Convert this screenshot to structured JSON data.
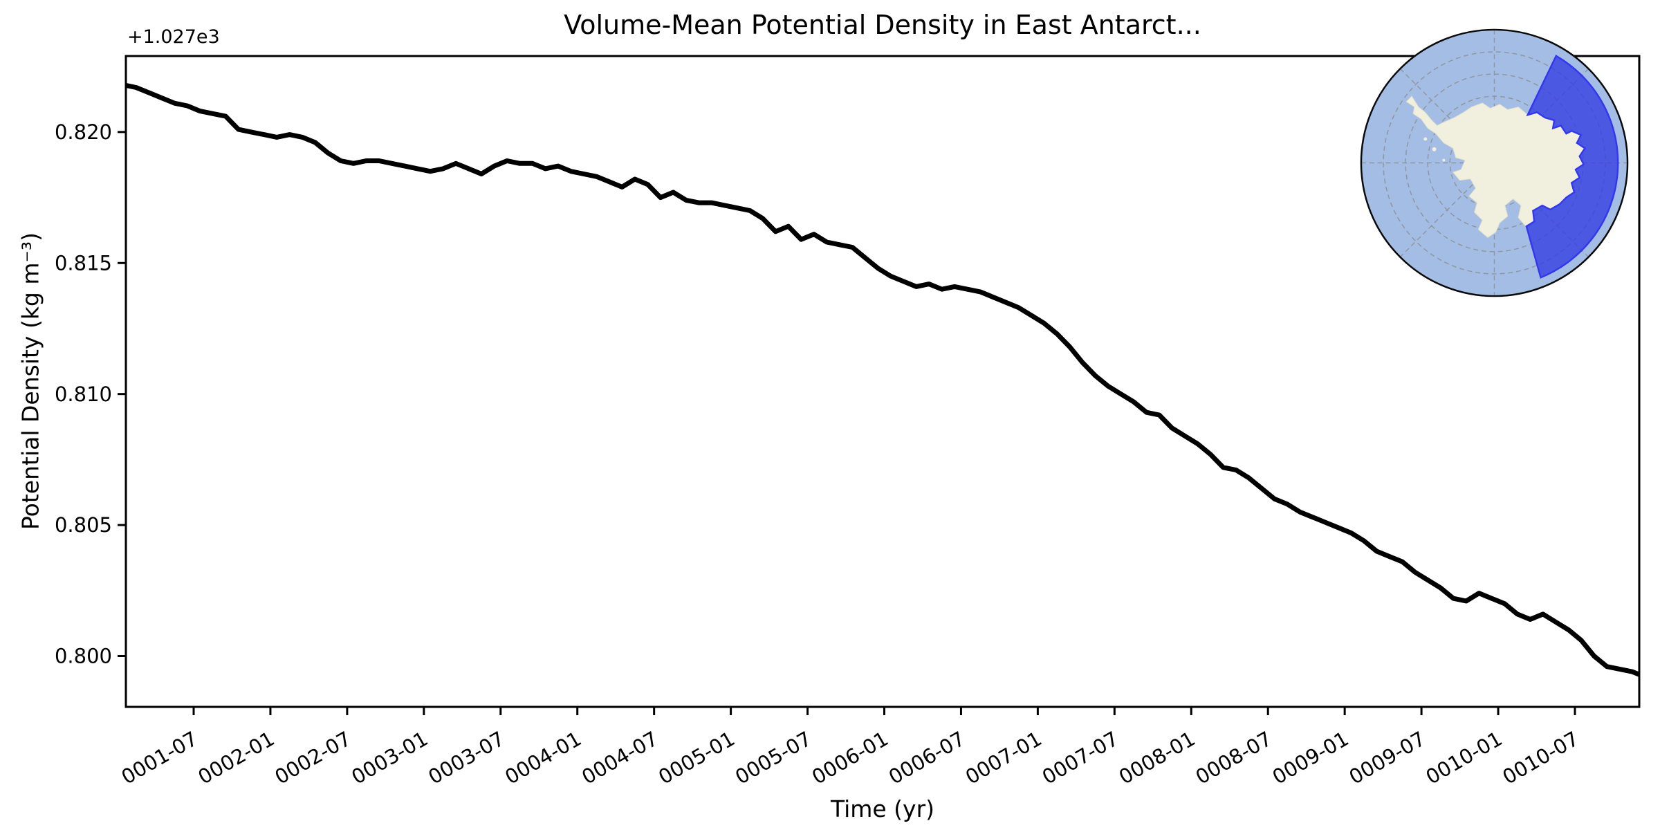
{
  "figure": {
    "title": "Volume-Mean Potential Density in East Antarct...",
    "offset_text": "+1.027e3",
    "xlabel": "Time (yr)",
    "ylabel": "Potential Density (kg m⁻³)"
  },
  "chart_data": {
    "type": "line",
    "title": "Volume-Mean Potential Density in East Antarct...",
    "xlabel": "Time (yr)",
    "ylabel": "Potential Density (kg m⁻³)",
    "y_offset_label": "+1.027e3",
    "y_offset": 1027,
    "grid": false,
    "legend": "none",
    "ylim": [
      1027.79806,
      1027.8229
    ],
    "xlim_months": [
      0.7,
      119.03
    ],
    "y_ticks": [
      {
        "value": 1027.82,
        "label": "0.820"
      },
      {
        "value": 1027.815,
        "label": "0.815"
      },
      {
        "value": 1027.81,
        "label": "0.810"
      },
      {
        "value": 1027.805,
        "label": "0.805"
      },
      {
        "value": 1027.8,
        "label": "0.800"
      }
    ],
    "x_tick_months": [
      6,
      12,
      18,
      24,
      30,
      36,
      42,
      48,
      54,
      60,
      66,
      72,
      78,
      84,
      90,
      96,
      102,
      108,
      114
    ],
    "x_tick_labels": [
      "0001-07",
      "0002-01",
      "0002-07",
      "0003-01",
      "0003-07",
      "0004-01",
      "0004-07",
      "0005-01",
      "0005-07",
      "0006-01",
      "0006-07",
      "0007-01",
      "0007-07",
      "0008-01",
      "0008-07",
      "0009-01",
      "0009-07",
      "0010-01",
      "0010-07"
    ],
    "x_start_month": "0001-01",
    "x_sampling": "monthly, point i at month i+0.5",
    "series": [
      {
        "name": "volume-mean potential density",
        "color": "#000000",
        "values": [
          1027.8218,
          1027.8217,
          1027.8215,
          1027.8213,
          1027.8211,
          1027.821,
          1027.8208,
          1027.8207,
          1027.8206,
          1027.8201,
          1027.82,
          1027.8199,
          1027.8198,
          1027.8199,
          1027.8198,
          1027.8196,
          1027.8192,
          1027.8189,
          1027.8188,
          1027.8189,
          1027.8189,
          1027.8188,
          1027.8187,
          1027.8186,
          1027.8185,
          1027.8186,
          1027.8188,
          1027.8186,
          1027.8184,
          1027.8187,
          1027.8189,
          1027.8188,
          1027.8188,
          1027.8186,
          1027.8187,
          1027.8185,
          1027.8184,
          1027.8183,
          1027.8181,
          1027.8179,
          1027.8182,
          1027.818,
          1027.8175,
          1027.8177,
          1027.8174,
          1027.8173,
          1027.8173,
          1027.8172,
          1027.8171,
          1027.817,
          1027.8167,
          1027.8162,
          1027.8164,
          1027.8159,
          1027.8161,
          1027.8158,
          1027.8157,
          1027.8156,
          1027.8152,
          1027.8148,
          1027.8145,
          1027.8143,
          1027.8141,
          1027.8142,
          1027.814,
          1027.8141,
          1027.814,
          1027.8139,
          1027.8137,
          1027.8135,
          1027.8133,
          1027.813,
          1027.8127,
          1027.8123,
          1027.8118,
          1027.8112,
          1027.8107,
          1027.8103,
          1027.81,
          1027.8097,
          1027.8093,
          1027.8092,
          1027.8087,
          1027.8084,
          1027.8081,
          1027.8077,
          1027.8072,
          1027.8071,
          1027.8068,
          1027.8064,
          1027.806,
          1027.8058,
          1027.8055,
          1027.8053,
          1027.8051,
          1027.8049,
          1027.8047,
          1027.8044,
          1027.804,
          1027.8038,
          1027.8036,
          1027.8032,
          1027.8029,
          1027.8026,
          1027.8022,
          1027.8021,
          1027.8024,
          1027.8022,
          1027.802,
          1027.8016,
          1027.8014,
          1027.8016,
          1027.8013,
          1027.801,
          1027.8006,
          1027.8,
          1027.7996,
          1027.7995,
          1027.7994,
          1027.7992
        ]
      }
    ]
  },
  "inset_map": {
    "projection": "south-polar-stereographic",
    "colors": {
      "ocean": "#a3bde4",
      "land": "#f1efdd",
      "region_fill": "#343fe0",
      "region_edge": "#3338f0",
      "graticule": "#909090",
      "outline": "#0a0a0a"
    }
  },
  "style": {
    "line_width": 7,
    "spine_width": 3,
    "background": "#ffffff"
  }
}
